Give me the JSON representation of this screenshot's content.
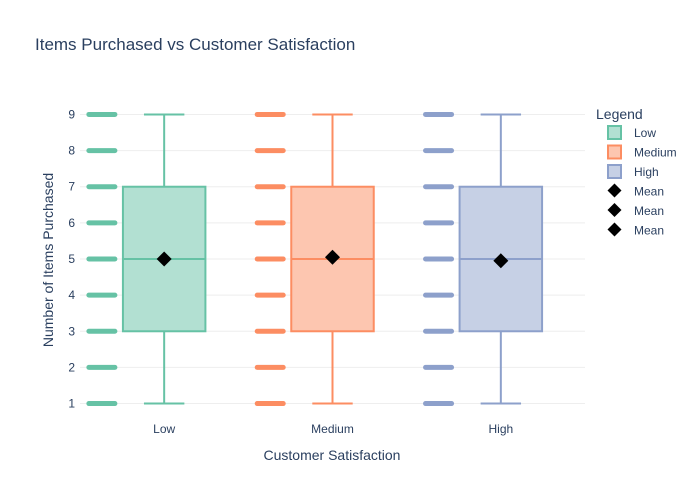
{
  "chart_data": {
    "type": "box",
    "title": "Items Purchased vs Customer Satisfaction",
    "xlabel": "Customer Satisfaction",
    "ylabel": "Number of Items Purchased",
    "categories": [
      "Low",
      "Medium",
      "High"
    ],
    "ylim": [
      0.6,
      9.4
    ],
    "yticks": [
      1,
      2,
      3,
      4,
      5,
      6,
      7,
      8,
      9
    ],
    "grid": true,
    "legend_title": "Legend",
    "legend_position": "right",
    "series": [
      {
        "name": "Low",
        "category": "Low",
        "color": "#66c2a5",
        "fill": "#b2e0d2",
        "min": 1,
        "q1": 3,
        "median": 5,
        "q3": 7,
        "max": 9,
        "points": [
          1,
          2,
          3,
          4,
          5,
          6,
          7,
          8,
          9
        ],
        "mean": 5.0
      },
      {
        "name": "Medium",
        "category": "Medium",
        "color": "#fc8d62",
        "fill": "#fdc6b0",
        "min": 1,
        "q1": 3,
        "median": 5,
        "q3": 7,
        "max": 9,
        "points": [
          1,
          2,
          3,
          4,
          5,
          6,
          7,
          8,
          9
        ],
        "mean": 5.05
      },
      {
        "name": "High",
        "category": "High",
        "color": "#8da0cb",
        "fill": "#c6d0e5",
        "min": 1,
        "q1": 3,
        "median": 5,
        "q3": 7,
        "max": 9,
        "points": [
          1,
          2,
          3,
          4,
          5,
          6,
          7,
          8,
          9
        ],
        "mean": 4.95
      }
    ],
    "mean_series": [
      {
        "name": "Mean",
        "category": "Low",
        "value": 5.0
      },
      {
        "name": "Mean",
        "category": "Medium",
        "value": 5.05
      },
      {
        "name": "Mean",
        "category": "High",
        "value": 4.95
      }
    ],
    "mean_color": "#000000"
  }
}
